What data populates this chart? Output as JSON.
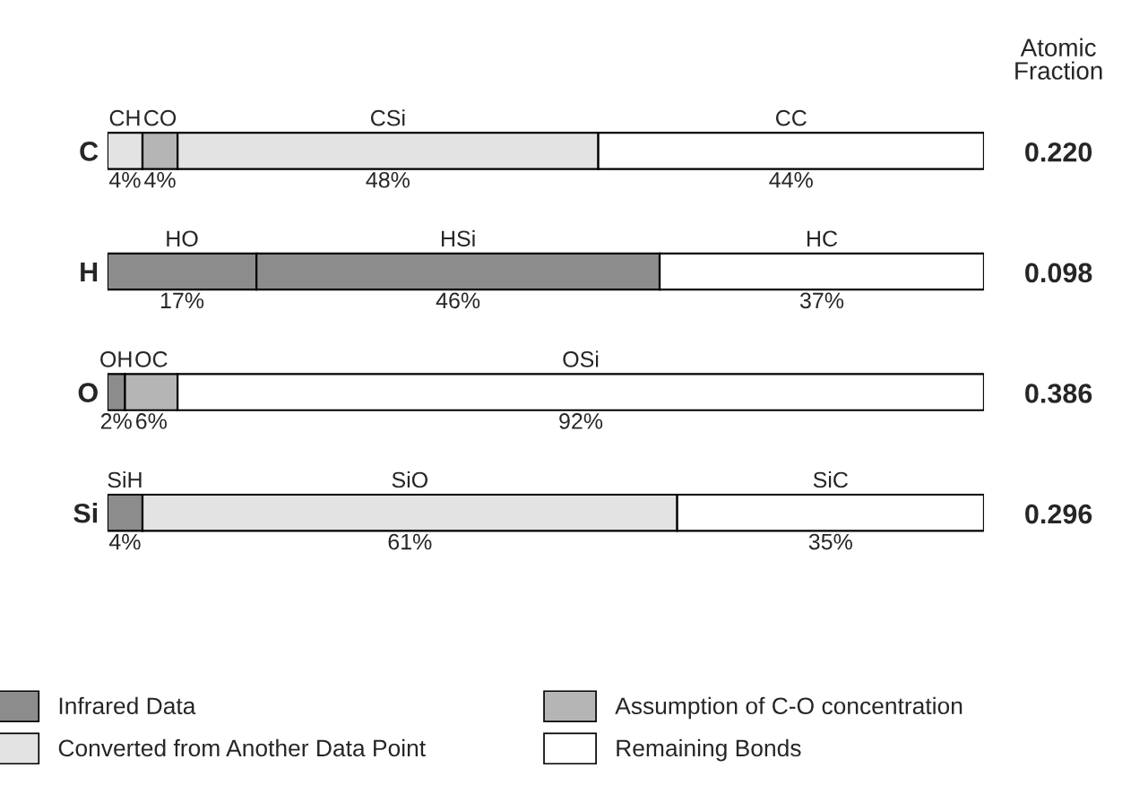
{
  "chart_data": {
    "type": "bar",
    "orientation": "horizontal",
    "stacked": true,
    "categories": [
      "C",
      "H",
      "O",
      "Si"
    ],
    "tick_labels": "y",
    "legend": "bottom",
    "series": [
      {
        "name": "Infrared Data",
        "color": "#8c8c8c",
        "values": [
          null,
          17,
          2,
          4
        ],
        "value_labels": [
          null,
          "17%",
          "2%",
          "4%"
        ]
      },
      {
        "name": "Converted from Another Data Point",
        "color": "#e3e3e3",
        "values": [
          4,
          null,
          null,
          null
        ],
        "value_labels": [
          "4%",
          null,
          null,
          null
        ]
      },
      {
        "name": "Assumption of C-O concentration",
        "color": "#b5b5b5",
        "values": [
          4,
          null,
          6,
          null
        ],
        "value_labels": [
          "4%",
          null,
          "6%",
          null
        ]
      },
      {
        "color": "#8c8c8c",
        "values": [
          null,
          46,
          null,
          null
        ],
        "value_labels": [
          null,
          "46%",
          null,
          null
        ]
      },
      {
        "color": "#e3e3e3",
        "values": [
          48,
          null,
          null,
          61
        ],
        "value_labels": [
          "48%",
          null,
          null,
          "61%"
        ]
      },
      {
        "name": "Remaining Bonds",
        "color": "#ffffff",
        "values": [
          44,
          37,
          92,
          35
        ],
        "value_labels": [
          "44%",
          "37%",
          "92%",
          "35%"
        ]
      }
    ],
    "annotations": [
      "Atomic Fraction",
      "0.220",
      "0.098",
      "0.386",
      "0.296",
      "CH",
      "CO",
      "CSi",
      "CC",
      "HO",
      "HSi",
      "HC",
      "OH",
      "OC",
      "OSi",
      "SiH",
      "SiO",
      "SiC"
    ]
  }
}
